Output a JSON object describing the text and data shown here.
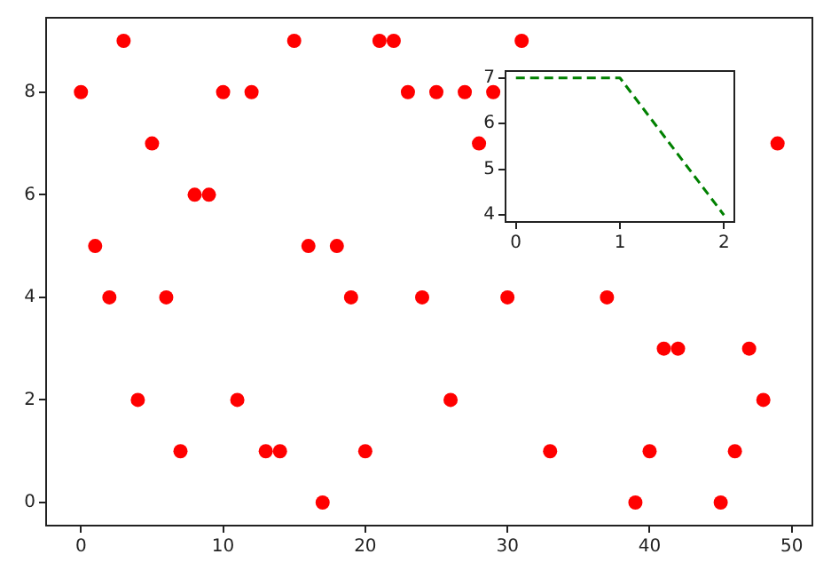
{
  "chart_data": [
    {
      "type": "scatter",
      "x": [
        0,
        1,
        2,
        3,
        4,
        5,
        6,
        7,
        8,
        9,
        10,
        11,
        12,
        13,
        14,
        15,
        16,
        17,
        18,
        19,
        20,
        21,
        22,
        23,
        24,
        25,
        26,
        27,
        28,
        29,
        30,
        31,
        32,
        33,
        34,
        35,
        36,
        37,
        38,
        39,
        40,
        41,
        42,
        43,
        44,
        45,
        46,
        47,
        48,
        49
      ],
      "values": [
        8,
        5,
        4,
        9,
        2,
        7,
        4,
        1,
        6,
        6,
        8,
        2,
        8,
        1,
        1,
        9,
        5,
        0,
        5,
        4,
        1,
        9,
        9,
        8,
        4,
        8,
        2,
        8,
        7,
        8,
        4,
        9,
        null,
        1,
        null,
        null,
        null,
        4,
        null,
        0,
        1,
        3,
        3,
        null,
        null,
        0,
        1,
        3,
        2,
        7
      ],
      "color": "#ff0000",
      "marker": "circle",
      "xlim": [
        -2.45,
        51.45
      ],
      "ylim": [
        -0.45,
        9.45
      ],
      "xticks": [
        0,
        10,
        20,
        30,
        40,
        50
      ],
      "yticks": [
        0,
        2,
        4,
        6,
        8
      ],
      "grid": false,
      "legend": false
    },
    {
      "type": "line",
      "x": [
        0,
        1,
        2
      ],
      "values": [
        7,
        7,
        4
      ],
      "color": "#008000",
      "line_style": "dashed",
      "marker": "none",
      "xlim": [
        -0.1,
        2.1
      ],
      "ylim": [
        3.85,
        7.15
      ],
      "xticks": [
        0,
        1,
        2
      ],
      "yticks": [
        4,
        5,
        6,
        7
      ],
      "grid": false,
      "legend": false
    }
  ]
}
